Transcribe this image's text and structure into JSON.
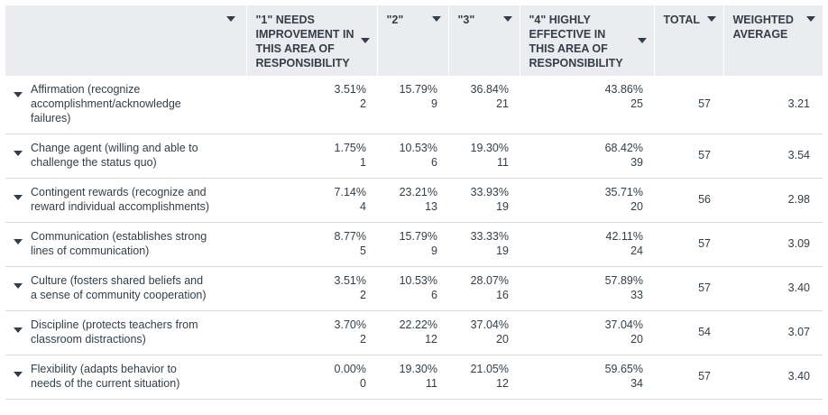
{
  "columns": [
    {
      "label": ""
    },
    {
      "label": "\"1\" NEEDS IMPROVEMENT IN THIS AREA OF RESPONSIBILITY"
    },
    {
      "label": "\"2\""
    },
    {
      "label": "\"3\""
    },
    {
      "label": "\"4\" HIGHLY EFFECTIVE IN THIS AREA OF RESPONSIBILITY"
    },
    {
      "label": "TOTAL"
    },
    {
      "label": "WEIGHTED AVERAGE"
    }
  ],
  "rows": [
    {
      "label": "Affirmation (recognize accomplishment/acknowledge failures)",
      "cells": [
        {
          "pct": "3.51%",
          "n": "2"
        },
        {
          "pct": "15.79%",
          "n": "9"
        },
        {
          "pct": "36.84%",
          "n": "21"
        },
        {
          "pct": "43.86%",
          "n": "25"
        }
      ],
      "total": "57",
      "avg": "3.21"
    },
    {
      "label": "Change agent (willing and able to challenge the status quo)",
      "cells": [
        {
          "pct": "1.75%",
          "n": "1"
        },
        {
          "pct": "10.53%",
          "n": "6"
        },
        {
          "pct": "19.30%",
          "n": "11"
        },
        {
          "pct": "68.42%",
          "n": "39"
        }
      ],
      "total": "57",
      "avg": "3.54"
    },
    {
      "label": "Contingent rewards (recognize and reward individual accomplishments)",
      "cells": [
        {
          "pct": "7.14%",
          "n": "4"
        },
        {
          "pct": "23.21%",
          "n": "13"
        },
        {
          "pct": "33.93%",
          "n": "19"
        },
        {
          "pct": "35.71%",
          "n": "20"
        }
      ],
      "total": "56",
      "avg": "2.98"
    },
    {
      "label": "Communication (establishes strong lines of communication)",
      "cells": [
        {
          "pct": "8.77%",
          "n": "5"
        },
        {
          "pct": "15.79%",
          "n": "9"
        },
        {
          "pct": "33.33%",
          "n": "19"
        },
        {
          "pct": "42.11%",
          "n": "24"
        }
      ],
      "total": "57",
      "avg": "3.09"
    },
    {
      "label": "Culture (fosters shared beliefs and a sense of community cooperation)",
      "cells": [
        {
          "pct": "3.51%",
          "n": "2"
        },
        {
          "pct": "10.53%",
          "n": "6"
        },
        {
          "pct": "28.07%",
          "n": "16"
        },
        {
          "pct": "57.89%",
          "n": "33"
        }
      ],
      "total": "57",
      "avg": "3.40"
    },
    {
      "label": "Discipline (protects teachers from classroom distractions)",
      "cells": [
        {
          "pct": "3.70%",
          "n": "2"
        },
        {
          "pct": "22.22%",
          "n": "12"
        },
        {
          "pct": "37.04%",
          "n": "20"
        },
        {
          "pct": "37.04%",
          "n": "20"
        }
      ],
      "total": "54",
      "avg": "3.07"
    },
    {
      "label": "Flexibility (adapts behavior to needs of the current situation)",
      "cells": [
        {
          "pct": "0.00%",
          "n": "0"
        },
        {
          "pct": "19.30%",
          "n": "11"
        },
        {
          "pct": "21.05%",
          "n": "12"
        },
        {
          "pct": "59.65%",
          "n": "34"
        }
      ],
      "total": "57",
      "avg": "3.40"
    }
  ]
}
